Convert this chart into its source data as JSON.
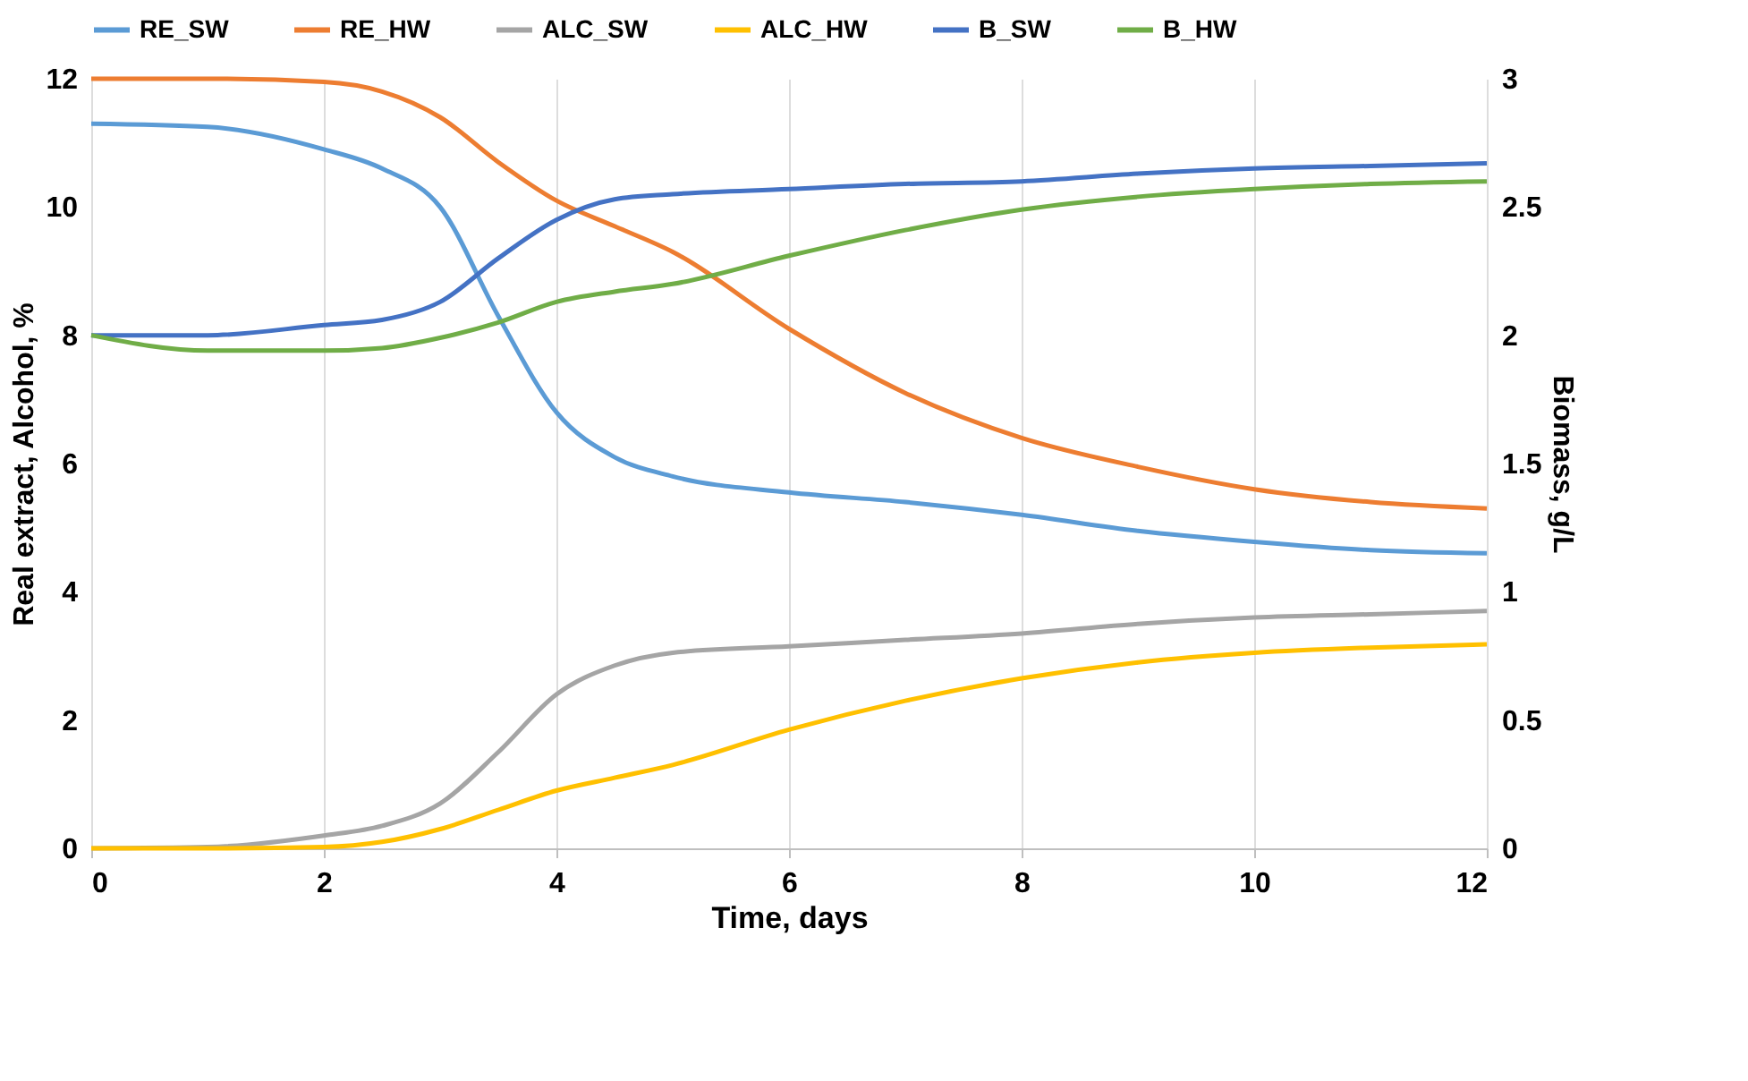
{
  "chart_data": {
    "type": "line",
    "xlabel": "Time, days",
    "ylabel": "Real extract, Alcohol, %",
    "y2label": "Biomass, g/L",
    "x": [
      0,
      1,
      2,
      2.5,
      3,
      3.5,
      4,
      4.5,
      5,
      6,
      7,
      8,
      9,
      10,
      11,
      12
    ],
    "xlim": [
      0,
      12
    ],
    "xticks": [
      0,
      2,
      4,
      6,
      8,
      10,
      12
    ],
    "ylim": [
      0,
      12
    ],
    "yticks": [
      0,
      2,
      4,
      6,
      8,
      10,
      12
    ],
    "y2lim": [
      0,
      3
    ],
    "y2ticks": [
      0,
      0.5,
      1,
      1.5,
      2,
      2.5,
      3
    ],
    "grid": "x",
    "legend": "top",
    "marker": "none",
    "line_style": "solid",
    "series": [
      {
        "name": "RE_SW",
        "color": "#5b9bd5",
        "values": [
          11.3,
          11.25,
          10.9,
          10.6,
          10.0,
          8.3,
          6.8,
          6.1,
          5.8,
          5.55,
          5.4,
          5.2,
          4.95,
          4.78,
          4.65,
          4.6
        ]
      },
      {
        "name": "RE_HW",
        "color": "#ed7d31",
        "values": [
          12,
          12,
          11.95,
          11.8,
          11.4,
          10.7,
          10.1,
          9.7,
          9.3,
          8.1,
          7.1,
          6.4,
          5.95,
          5.6,
          5.4,
          5.3
        ]
      },
      {
        "name": "ALC_SW",
        "color": "#a5a5a5",
        "values": [
          0,
          0.02,
          0.2,
          0.35,
          0.7,
          1.5,
          2.4,
          2.85,
          3.05,
          3.15,
          3.25,
          3.35,
          3.5,
          3.6,
          3.65,
          3.7
        ]
      },
      {
        "name": "ALC_HW",
        "color": "#ffc000",
        "values": [
          0,
          0,
          0.02,
          0.1,
          0.3,
          0.6,
          0.9,
          1.1,
          1.3,
          1.85,
          2.3,
          2.65,
          2.9,
          3.05,
          3.13,
          3.18
        ]
      },
      {
        "name": "B_SW",
        "color": "#4472c4",
        "axis": "y2",
        "values": [
          2,
          2,
          2.04,
          2.06,
          2.13,
          2.3,
          2.45,
          2.53,
          2.55,
          2.57,
          2.59,
          2.6,
          2.63,
          2.65,
          2.66,
          2.67
        ]
      },
      {
        "name": "B_HW",
        "color": "#70ad47",
        "axis": "y2",
        "values": [
          2,
          1.94,
          1.94,
          1.95,
          1.99,
          2.05,
          2.13,
          2.17,
          2.2,
          2.31,
          2.41,
          2.49,
          2.54,
          2.57,
          2.59,
          2.6
        ]
      }
    ]
  }
}
